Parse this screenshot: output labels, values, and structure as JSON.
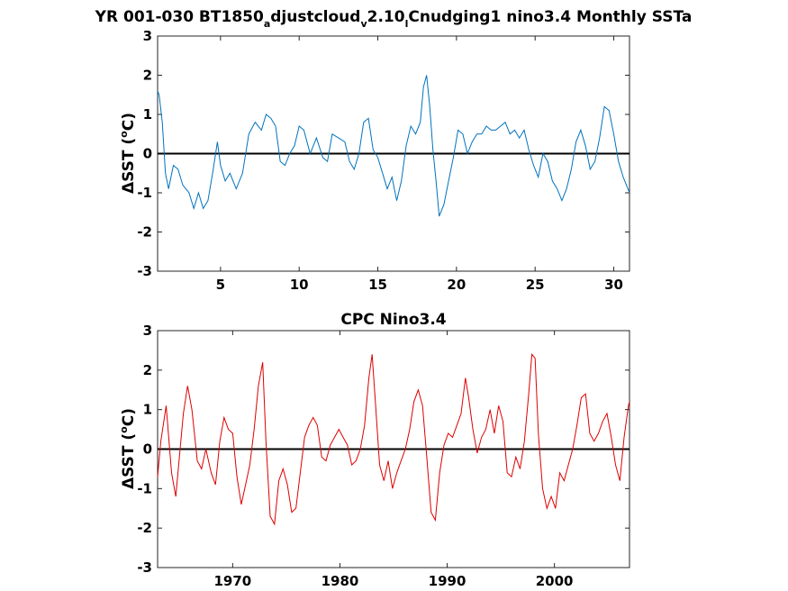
{
  "chart_data": [
    {
      "type": "line",
      "title_parts": [
        "YR 001-030 BT1850",
        "a",
        "djustcloud",
        "v",
        "2.10",
        "l",
        "Cnudging1 nino3.4 Monthly SSTa"
      ],
      "ylabel": "ΔSST (°C)",
      "ylabel_parts": [
        "ΔSST (",
        "o",
        "C)"
      ],
      "xlim": [
        1,
        31
      ],
      "ylim": [
        -3,
        3
      ],
      "xticks": [
        5,
        10,
        15,
        20,
        25,
        30
      ],
      "yticks": [
        -3,
        -2,
        -1,
        0,
        1,
        2,
        3
      ],
      "line_color": "#0072BD",
      "zero_line": true,
      "series": [
        {
          "x": [
            1.0,
            1.1,
            1.3,
            1.5,
            1.7,
            2.0,
            2.3,
            2.6,
            3.0,
            3.3,
            3.6,
            3.9,
            4.2,
            4.5,
            4.8,
            5.0,
            5.3,
            5.6,
            6.0,
            6.4,
            6.8,
            7.2,
            7.6,
            7.9,
            8.2,
            8.5,
            8.8,
            9.1,
            9.4,
            9.7,
            10.0,
            10.3,
            10.7,
            11.1,
            11.5,
            11.8,
            12.1,
            12.5,
            12.9,
            13.2,
            13.5,
            13.8,
            14.1,
            14.4,
            14.7,
            15.0,
            15.3,
            15.6,
            15.9,
            16.2,
            16.5,
            16.8,
            17.1,
            17.4,
            17.7,
            17.9,
            18.1,
            18.3,
            18.5,
            18.7,
            18.9,
            19.2,
            19.5,
            19.8,
            20.1,
            20.4,
            20.7,
            21.0,
            21.3,
            21.6,
            21.9,
            22.2,
            22.5,
            22.8,
            23.1,
            23.4,
            23.7,
            24.0,
            24.3,
            24.6,
            24.9,
            25.2,
            25.5,
            25.8,
            26.1,
            26.4,
            26.7,
            27.0,
            27.3,
            27.6,
            27.9,
            28.2,
            28.5,
            28.8,
            29.1,
            29.4,
            29.7,
            30.0,
            30.3,
            30.6,
            31.0
          ],
          "y": [
            1.6,
            1.5,
            0.8,
            -0.5,
            -0.9,
            -0.3,
            -0.4,
            -0.8,
            -1.0,
            -1.4,
            -1.0,
            -1.4,
            -1.2,
            -0.5,
            0.3,
            -0.3,
            -0.7,
            -0.5,
            -0.9,
            -0.5,
            0.5,
            0.8,
            0.6,
            1.0,
            0.9,
            0.7,
            -0.2,
            -0.3,
            0.0,
            0.2,
            0.7,
            0.6,
            0.0,
            0.4,
            -0.1,
            -0.2,
            0.5,
            0.4,
            0.3,
            -0.2,
            -0.4,
            0.0,
            0.8,
            0.9,
            0.1,
            -0.1,
            -0.5,
            -0.9,
            -0.6,
            -1.2,
            -0.7,
            0.2,
            0.7,
            0.5,
            0.8,
            1.7,
            2.0,
            1.2,
            0.1,
            -0.7,
            -1.6,
            -1.3,
            -0.7,
            -0.1,
            0.6,
            0.5,
            0.0,
            0.3,
            0.5,
            0.5,
            0.7,
            0.6,
            0.6,
            0.7,
            0.8,
            0.5,
            0.6,
            0.4,
            0.6,
            0.1,
            -0.3,
            -0.6,
            0.0,
            -0.2,
            -0.7,
            -0.9,
            -1.2,
            -0.9,
            -0.4,
            0.3,
            0.6,
            0.2,
            -0.4,
            -0.2,
            0.4,
            1.2,
            1.1,
            0.5,
            -0.2,
            -0.6,
            -1.0
          ]
        }
      ]
    },
    {
      "type": "line",
      "title": "CPC Nino3.4",
      "ylabel": "ΔSST (°C)",
      "ylabel_parts": [
        "ΔSST (",
        "o",
        "C)"
      ],
      "xlim": [
        1963,
        2007
      ],
      "ylim": [
        -3,
        3
      ],
      "xticks": [
        1970,
        1980,
        1990,
        2000
      ],
      "yticks": [
        -3,
        -2,
        -1,
        0,
        1,
        2,
        3
      ],
      "line_color": "#DD0000",
      "zero_line": true,
      "series": [
        {
          "x": [
            1963.0,
            1963.3,
            1963.8,
            1964.3,
            1964.7,
            1965.0,
            1965.4,
            1965.8,
            1966.2,
            1966.7,
            1967.1,
            1967.5,
            1968.0,
            1968.4,
            1968.8,
            1969.2,
            1969.6,
            1970.0,
            1970.4,
            1970.8,
            1971.2,
            1971.6,
            1972.0,
            1972.4,
            1972.8,
            1973.1,
            1973.5,
            1973.9,
            1974.3,
            1974.7,
            1975.1,
            1975.5,
            1975.9,
            1976.3,
            1976.7,
            1977.1,
            1977.5,
            1977.9,
            1978.3,
            1978.7,
            1979.1,
            1979.5,
            1979.9,
            1980.3,
            1980.7,
            1981.1,
            1981.5,
            1981.9,
            1982.3,
            1982.7,
            1983.0,
            1983.3,
            1983.7,
            1984.1,
            1984.5,
            1984.9,
            1985.3,
            1985.7,
            1986.1,
            1986.5,
            1986.9,
            1987.3,
            1987.7,
            1988.1,
            1988.5,
            1988.9,
            1989.3,
            1989.7,
            1990.1,
            1990.5,
            1990.9,
            1991.3,
            1991.7,
            1992.0,
            1992.4,
            1992.8,
            1993.2,
            1993.6,
            1994.0,
            1994.4,
            1994.8,
            1995.2,
            1995.6,
            1996.0,
            1996.4,
            1996.8,
            1997.2,
            1997.6,
            1997.9,
            1998.2,
            1998.5,
            1998.9,
            1999.3,
            1999.7,
            2000.1,
            2000.5,
            2000.9,
            2001.3,
            2001.7,
            2002.1,
            2002.5,
            2002.9,
            2003.3,
            2003.7,
            2004.1,
            2004.5,
            2004.9,
            2005.3,
            2005.7,
            2006.1,
            2006.5,
            2006.9,
            2007.0
          ],
          "y": [
            -0.7,
            0.2,
            1.1,
            -0.6,
            -1.2,
            -0.3,
            0.9,
            1.6,
            1.0,
            -0.3,
            -0.5,
            0.0,
            -0.6,
            -0.9,
            0.2,
            0.8,
            0.5,
            0.4,
            -0.7,
            -1.4,
            -0.9,
            -0.4,
            0.5,
            1.6,
            2.2,
            0.2,
            -1.7,
            -1.9,
            -0.8,
            -0.5,
            -0.9,
            -1.6,
            -1.5,
            -0.6,
            0.3,
            0.6,
            0.8,
            0.6,
            -0.2,
            -0.3,
            0.1,
            0.3,
            0.5,
            0.3,
            0.1,
            -0.4,
            -0.3,
            0.0,
            0.6,
            1.8,
            2.4,
            1.2,
            -0.4,
            -0.8,
            -0.3,
            -1.0,
            -0.6,
            -0.3,
            0.0,
            0.5,
            1.2,
            1.5,
            1.1,
            -0.2,
            -1.6,
            -1.8,
            -0.6,
            0.1,
            0.4,
            0.3,
            0.6,
            0.9,
            1.8,
            1.3,
            0.5,
            -0.1,
            0.3,
            0.5,
            1.0,
            0.4,
            1.1,
            0.7,
            -0.6,
            -0.7,
            -0.2,
            -0.5,
            0.2,
            1.4,
            2.4,
            2.3,
            0.4,
            -1.0,
            -1.5,
            -1.2,
            -1.5,
            -0.6,
            -0.8,
            -0.4,
            0.0,
            0.6,
            1.3,
            1.4,
            0.4,
            0.2,
            0.4,
            0.7,
            0.9,
            0.3,
            -0.4,
            -0.8,
            0.3,
            1.1,
            1.2
          ]
        }
      ]
    }
  ]
}
